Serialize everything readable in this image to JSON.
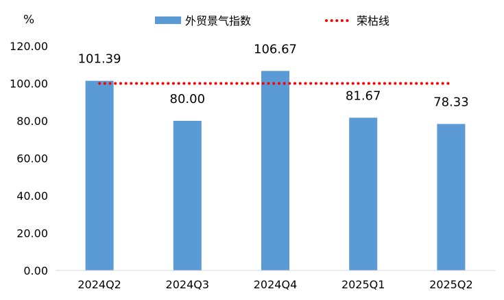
{
  "chart_data": {
    "type": "bar",
    "title": "",
    "unit": "%",
    "categories": [
      "2024Q2",
      "2024Q3",
      "2024Q4",
      "2025Q1",
      "2025Q2"
    ],
    "series": [
      {
        "name": "外贸景气指数",
        "type": "bar",
        "color": "#5B9BD5",
        "values": [
          101.39,
          80.0,
          106.67,
          81.67,
          78.33
        ],
        "labels": [
          "101.39",
          "80.00",
          "106.67",
          "81.67",
          "78.33"
        ]
      },
      {
        "name": "荣枯线",
        "type": "line",
        "style": "dotted",
        "color": "#FF0000",
        "values": [
          100,
          100,
          100,
          100,
          100
        ]
      }
    ],
    "ylim": [
      0,
      120
    ],
    "yticks": [
      "0.00",
      "20.00",
      "40.00",
      "60.00",
      "80.00",
      "100.00",
      "120.00"
    ],
    "grid": false,
    "legend_position": "top"
  }
}
